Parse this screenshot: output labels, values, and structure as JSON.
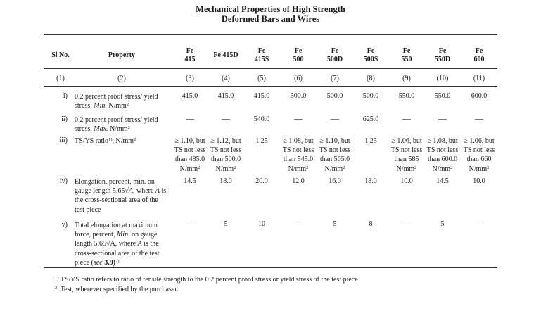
{
  "title": {
    "line1": "Mechanical Properties of High Strength",
    "line2": "Deformed Bars and Wires"
  },
  "headers": {
    "sl_no": "Sl No.",
    "property": "Property",
    "grades": [
      {
        "l1": "Fe",
        "l2": "415"
      },
      {
        "l1": "Fe 415D",
        "l2": ""
      },
      {
        "l1": "Fe",
        "l2": "415S"
      },
      {
        "l1": "Fe",
        "l2": "500"
      },
      {
        "l1": "Fe",
        "l2": "500D"
      },
      {
        "l1": "Fe",
        "l2": "500S"
      },
      {
        "l1": "Fe",
        "l2": "550"
      },
      {
        "l1": "Fe",
        "l2": "550D"
      },
      {
        "l1": "Fe",
        "l2": "600"
      }
    ]
  },
  "column_numbers": [
    "(1)",
    "(2)",
    "(3)",
    "(4)",
    "(5)",
    "(6)",
    "(7)",
    "(8)",
    "(9)",
    "(10)",
    "(11)"
  ],
  "rows": {
    "r1": {
      "sl": "i)",
      "prop1": "0.2 percent proof stress/ yield",
      "prop2a": "stress, ",
      "prop2i": "Min.",
      "prop2b": " N/mm",
      "sup": "2",
      "values": [
        "415.0",
        "415.0",
        "415.0",
        "500.0",
        "500.0",
        "500.0",
        "550.0",
        "550.0",
        "600.0"
      ]
    },
    "r2": {
      "sl": "ii)",
      "prop1": "0.2 percent proof stress/ yield",
      "prop2a": "stress, ",
      "prop2i": "Max.",
      "prop2b": " N/mm",
      "sup": "2",
      "values": [
        "—",
        "—",
        "540.0",
        "—",
        "—",
        "625.0",
        "—",
        "—",
        "—"
      ]
    },
    "r3": {
      "sl": "iii)",
      "prop_a": "TS/YS ratio",
      "sup1": "1)",
      "prop_b": ", N/mm",
      "sup2": "2",
      "cells": [
        {
          "l1": "≥ 1.10, but",
          "l2": "TS not less",
          "l3": "than 485.0",
          "l4": "N/mm",
          "sup": "2"
        },
        {
          "l1": "≥ 1.12, but",
          "l2": "TS not less",
          "l3": "than 500.0",
          "l4": "N/mm",
          "sup": "2"
        },
        {
          "l1": "1.25"
        },
        {
          "l1": "≥ 1.08, but",
          "l2": "TS not less",
          "l3": "than 545.0",
          "l4": "N/mm",
          "sup": "2"
        },
        {
          "l1": "≥ 1.10, but",
          "l2": "TS not less",
          "l3": "than 565.0",
          "l4": "N/mm",
          "sup": "2"
        },
        {
          "l1": "1.25"
        },
        {
          "l1": "≥ 1.06, but",
          "l2": "TS not less",
          "l3": "than 585",
          "l4": "N/mm",
          "sup": "2"
        },
        {
          "l1": "≥ 1.08, but",
          "l2": "TS not less",
          "l3": "than 600.0",
          "l4": "N/mm",
          "sup": "2"
        },
        {
          "l1": "≥ 1.06, but",
          "l2": "TS not less",
          "l3": "than 660",
          "l4": "N/mm",
          "sup": "2"
        }
      ]
    },
    "r4": {
      "sl": "iv)",
      "l1": "Elongation, percent, min. on",
      "l2a": "gauge length 5.65√",
      "l2i": "A",
      "l2b": ", where ",
      "l2i2": "A",
      "l2c": " is",
      "l3": "the cross-sectional area of the",
      "l4": "test piece",
      "values": [
        "14.5",
        "18.0",
        "20.0",
        "12.0",
        "16.0",
        "18.0",
        "10.0",
        "14.5",
        "10.0"
      ]
    },
    "r5": {
      "sl": "v)",
      "l1": "Total elongation at maximum",
      "l2a": "force, percent, ",
      "l2i": "Min.",
      "l2b": " on gauge",
      "l3a": "length 5.65√A, where ",
      "l3i": "A",
      "l3b": " is the",
      "l4": "cross-sectional area of the test",
      "l5a": "piece (",
      "l5i": "see",
      "l5b": " 3.9)",
      "l5sup": "2)",
      "values": [
        "—",
        "5",
        "10",
        "—",
        "5",
        "8",
        "—",
        "5",
        "—"
      ]
    }
  },
  "footnotes": [
    {
      "mark": "1)",
      "text": " TS/YS ratio refers to ratio of tensile strength to the 0.2 percent proof stress or yield stress of the test piece"
    },
    {
      "mark": "2)",
      "text": " Test, wherever specified by the purchaser."
    }
  ]
}
